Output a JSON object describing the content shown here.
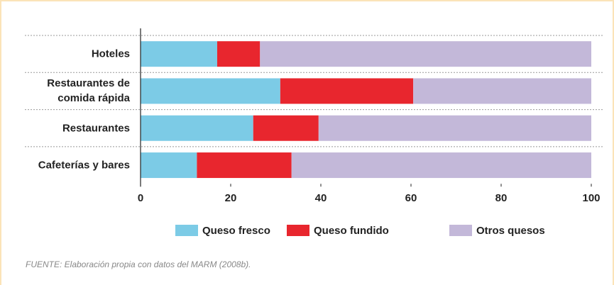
{
  "chart_data": {
    "type": "stacked_barh",
    "categories": [
      "Hoteles",
      "Restaurantes de\ncomida rápida",
      "Restaurantes",
      "Cafeterías y bares"
    ],
    "series": [
      {
        "name": "Queso fresco",
        "color": "#7ccbe6",
        "values": [
          17,
          31,
          25,
          12.5
        ]
      },
      {
        "name": "Queso fundido",
        "color": "#e8262e",
        "values": [
          9.5,
          29.5,
          14.5,
          21
        ]
      },
      {
        "name": "Otros quesos",
        "color": "#c3b8d9",
        "values": [
          73.5,
          39.5,
          60.5,
          66.5
        ]
      }
    ],
    "xlim": [
      0,
      100
    ],
    "xticks": [
      0,
      20,
      40,
      60,
      80,
      100
    ],
    "source": "FUENTE: Elaboración propia con datos del MARM (2008b)."
  }
}
